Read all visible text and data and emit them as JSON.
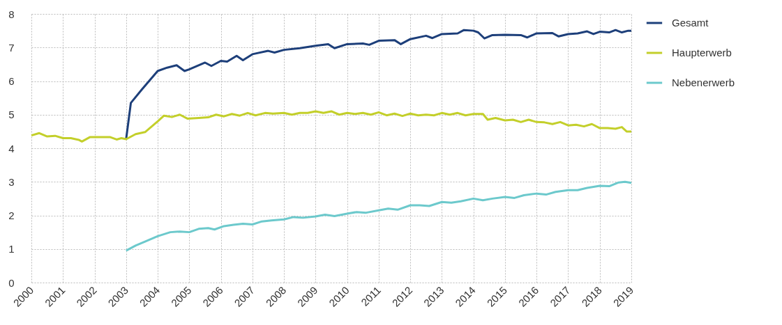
{
  "chart_data": {
    "type": "line",
    "xlim": [
      2000,
      2019
    ],
    "xticks": [
      2000,
      2001,
      2002,
      2003,
      2004,
      2005,
      2006,
      2007,
      2008,
      2009,
      2010,
      2011,
      2012,
      2013,
      2014,
      2015,
      2016,
      2017,
      2018,
      2019
    ],
    "ylim": [
      0,
      8
    ],
    "yticks": [
      0,
      1,
      2,
      3,
      4,
      5,
      6,
      7,
      8
    ],
    "grid": true,
    "legend": "top right",
    "line_style": "solid",
    "marker": "none",
    "series": [
      {
        "name": "Gesamt",
        "color": "#1d3f7a",
        "x": [
          2003.0,
          2003.15,
          2003.5,
          2004.0,
          2004.3,
          2004.6,
          2004.85,
          2005.0,
          2005.5,
          2005.7,
          2006.0,
          2006.2,
          2006.5,
          2006.7,
          2007.0,
          2007.5,
          2007.7,
          2008.0,
          2008.5,
          2009.0,
          2009.4,
          2009.6,
          2010.0,
          2010.5,
          2010.7,
          2011.0,
          2011.5,
          2011.7,
          2012.0,
          2012.5,
          2012.7,
          2013.0,
          2013.5,
          2013.7,
          2014.0,
          2014.15,
          2014.35,
          2014.6,
          2015.0,
          2015.5,
          2015.7,
          2016.0,
          2016.5,
          2016.7,
          2017.0,
          2017.3,
          2017.6,
          2017.8,
          2018.0,
          2018.3,
          2018.5,
          2018.7,
          2018.9,
          2019.0
        ],
        "values": [
          4.27,
          5.35,
          5.75,
          6.3,
          6.4,
          6.47,
          6.3,
          6.35,
          6.55,
          6.45,
          6.6,
          6.58,
          6.75,
          6.62,
          6.8,
          6.9,
          6.85,
          6.93,
          6.98,
          7.05,
          7.1,
          6.98,
          7.1,
          7.12,
          7.08,
          7.2,
          7.22,
          7.1,
          7.25,
          7.35,
          7.28,
          7.4,
          7.42,
          7.52,
          7.5,
          7.45,
          7.27,
          7.37,
          7.38,
          7.37,
          7.3,
          7.42,
          7.43,
          7.33,
          7.4,
          7.42,
          7.48,
          7.4,
          7.47,
          7.45,
          7.52,
          7.45,
          7.5,
          7.5
        ]
      },
      {
        "name": "Haupterwerb",
        "color": "#c3cf2a",
        "x": [
          2000.0,
          2000.25,
          2000.5,
          2000.75,
          2001.0,
          2001.25,
          2001.5,
          2001.6,
          2001.85,
          2002.25,
          2002.5,
          2002.7,
          2002.85,
          2003.0,
          2003.3,
          2003.6,
          2004.0,
          2004.2,
          2004.45,
          2004.7,
          2004.95,
          2005.3,
          2005.6,
          2005.85,
          2006.1,
          2006.35,
          2006.6,
          2006.85,
          2007.1,
          2007.4,
          2007.65,
          2008.0,
          2008.25,
          2008.5,
          2008.75,
          2009.0,
          2009.25,
          2009.5,
          2009.75,
          2010.0,
          2010.25,
          2010.5,
          2010.75,
          2011.0,
          2011.25,
          2011.5,
          2011.75,
          2012.0,
          2012.25,
          2012.5,
          2012.75,
          2013.0,
          2013.25,
          2013.5,
          2013.75,
          2014.0,
          2014.3,
          2014.45,
          2014.7,
          2015.0,
          2015.25,
          2015.5,
          2015.75,
          2016.0,
          2016.25,
          2016.5,
          2016.75,
          2017.0,
          2017.25,
          2017.5,
          2017.75,
          2018.0,
          2018.25,
          2018.5,
          2018.7,
          2018.85,
          2019.0
        ],
        "values": [
          4.38,
          4.45,
          4.35,
          4.37,
          4.3,
          4.3,
          4.25,
          4.2,
          4.33,
          4.33,
          4.33,
          4.26,
          4.3,
          4.27,
          4.42,
          4.48,
          4.8,
          4.97,
          4.93,
          5.0,
          4.88,
          4.9,
          4.92,
          5.0,
          4.95,
          5.02,
          4.97,
          5.05,
          4.98,
          5.05,
          5.03,
          5.05,
          5.0,
          5.05,
          5.05,
          5.1,
          5.05,
          5.1,
          5.0,
          5.05,
          5.02,
          5.05,
          5.0,
          5.07,
          4.98,
          5.03,
          4.96,
          5.03,
          4.98,
          5.0,
          4.98,
          5.05,
          5.0,
          5.05,
          4.98,
          5.02,
          5.02,
          4.85,
          4.9,
          4.83,
          4.85,
          4.78,
          4.85,
          4.78,
          4.77,
          4.72,
          4.78,
          4.68,
          4.7,
          4.65,
          4.72,
          4.6,
          4.6,
          4.58,
          4.63,
          4.5,
          4.5
        ]
      },
      {
        "name": "Nebenerwerb",
        "color": "#6cc9cc",
        "x": [
          2003.0,
          2003.3,
          2003.6,
          2004.0,
          2004.4,
          2004.7,
          2005.0,
          2005.3,
          2005.6,
          2005.8,
          2006.1,
          2006.4,
          2006.7,
          2007.0,
          2007.3,
          2007.6,
          2008.0,
          2008.3,
          2008.6,
          2009.0,
          2009.3,
          2009.6,
          2010.0,
          2010.3,
          2010.6,
          2011.0,
          2011.3,
          2011.6,
          2012.0,
          2012.3,
          2012.6,
          2013.0,
          2013.3,
          2013.6,
          2014.0,
          2014.3,
          2014.6,
          2015.0,
          2015.3,
          2015.6,
          2016.0,
          2016.3,
          2016.6,
          2017.0,
          2017.3,
          2017.6,
          2018.0,
          2018.3,
          2018.6,
          2018.8,
          2019.0
        ],
        "values": [
          0.95,
          1.1,
          1.22,
          1.38,
          1.5,
          1.52,
          1.5,
          1.6,
          1.62,
          1.58,
          1.68,
          1.72,
          1.75,
          1.73,
          1.82,
          1.85,
          1.88,
          1.95,
          1.93,
          1.97,
          2.02,
          1.98,
          2.05,
          2.1,
          2.08,
          2.15,
          2.2,
          2.17,
          2.3,
          2.3,
          2.28,
          2.4,
          2.38,
          2.42,
          2.5,
          2.45,
          2.5,
          2.55,
          2.52,
          2.6,
          2.65,
          2.62,
          2.7,
          2.75,
          2.75,
          2.82,
          2.88,
          2.87,
          2.98,
          3.0,
          2.97
        ]
      }
    ]
  }
}
